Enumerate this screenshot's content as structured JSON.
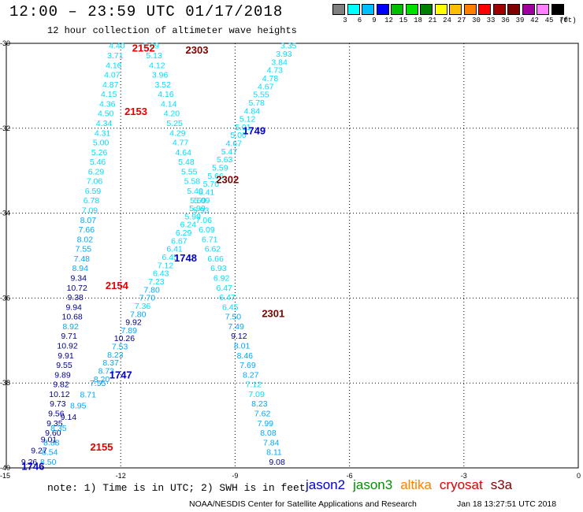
{
  "title": "12:00 – 23:59 UTC 01/17/2018",
  "subtitle": "12 hour collection of altimeter wave heights",
  "colorbar": {
    "colors": [
      "#808080",
      "#00ffff",
      "#00bfff",
      "#0000ff",
      "#00c000",
      "#00e000",
      "#008000",
      "#ffff00",
      "#ffbf00",
      "#ff8000",
      "#ff0000",
      "#a00000",
      "#800000",
      "#a000a0",
      "#ff80ff",
      "#000000"
    ],
    "labels": [
      "3",
      "6",
      "9",
      "12",
      "15",
      "18",
      "21",
      "24",
      "27",
      "30",
      "33",
      "36",
      "39",
      "42",
      "45",
      "70"
    ],
    "unit": "(ft)"
  },
  "axes": {
    "lat_ticks": [
      "-30",
      "-32",
      "-34",
      "-36",
      "-38",
      "-40"
    ],
    "lon_ticks": [
      "-15",
      "-12",
      "-9",
      "-6",
      "-3",
      "0"
    ],
    "lat_range": [
      -40,
      -30
    ],
    "lon_range": [
      -15,
      0
    ]
  },
  "colors": {
    "light": "#00e0ff",
    "mid": "#00a8ff",
    "dark": "#000090",
    "jason2": "#0000c8",
    "jason3": "#009000",
    "altika": "#ff8000",
    "cryosat": "#e00000",
    "s3a": "#800000"
  },
  "tracks": [
    {
      "id": "t1",
      "start": [
        -12.1,
        -30.05
      ],
      "end": [
        -13.9,
        -39.85
      ],
      "values": [
        "4.40",
        "3.71",
        "4.16",
        "4.07",
        "4.87",
        "4.15",
        "4.36",
        "4.50",
        "4.34",
        "4.31",
        "5.00",
        "5.26",
        "5.46",
        "6.29",
        "7.06",
        "6.59",
        "6.78",
        "7.09",
        "8.07",
        "7.66",
        "8.02",
        "7.55",
        "7.48",
        "8.94",
        "9.34",
        "10.72",
        "9.38",
        "9.94",
        "10.68",
        "8.92",
        "9.71",
        "10.92",
        "9.91",
        "9.55",
        "9.89",
        "9.82",
        "10.12",
        "9.73",
        "9.56",
        "9.35",
        "9.60",
        "8.88",
        "8.54",
        "8.50"
      ]
    },
    {
      "id": "t2",
      "start": [
        -11.2,
        -30.05
      ],
      "end": [
        -7.9,
        -39.85
      ],
      "values": [
        "5.09",
        "5.13",
        "4.12",
        "3.96",
        "3.52",
        "4.16",
        "4.14",
        "4.20",
        "5.25",
        "4.29",
        "4.77",
        "4.64",
        "5.48",
        "5.55",
        "5.58",
        "5.40",
        "5.59",
        "5.93",
        "7.06",
        "6.09",
        "6.71",
        "6.62",
        "6.66",
        "6.93",
        "6.92",
        "6.47",
        "6.47",
        "6.45",
        "7.50",
        "7.49",
        "9.12",
        "8.01",
        "8.46",
        "7.69",
        "8.27",
        "7.12",
        "7.09",
        "8.23",
        "7.62",
        "7.99",
        "8.08",
        "7.84",
        "8.11",
        "9.08"
      ]
    },
    {
      "id": "t3",
      "start": [
        -7.6,
        -30.05
      ],
      "end": [
        -12.5,
        -37.9
      ],
      "values": [
        "3.35",
        "3.93",
        "3.84",
        "4.73",
        "4.78",
        "4.67",
        "5.55",
        "5.78",
        "4.84",
        "5.12",
        "5.01",
        "5.00",
        "4.67",
        "5.47",
        "5.63",
        "5.59",
        "5.66",
        "5.70",
        "6.41",
        "5.09",
        "5.99",
        "5.99",
        "6.24",
        "6.29",
        "6.67",
        "6.41",
        "6.45",
        "7.12",
        "6.43",
        "7.23",
        "7.80",
        "7.70",
        "7.36",
        "7.80",
        "9.92",
        "7.89",
        "10.26",
        "7.53",
        "8.23",
        "8.37",
        "8.73",
        "8.20"
      ]
    },
    {
      "id": "t4",
      "start": [
        -12.6,
        -38.0
      ],
      "end": [
        -14.4,
        -39.85
      ],
      "values": [
        "7.55",
        "8.71",
        "8.95",
        "9.14",
        "8.35",
        "9.01",
        "9.27",
        "9.26"
      ]
    }
  ],
  "pass_labels": [
    {
      "text": "2152",
      "lon": -11.4,
      "lat": -30.1,
      "color": "cryosat"
    },
    {
      "text": "2303",
      "lon": -10.0,
      "lat": -30.15,
      "color": "s3a"
    },
    {
      "text": "2153",
      "lon": -11.6,
      "lat": -31.6,
      "color": "cryosat"
    },
    {
      "text": "1749",
      "lon": -8.5,
      "lat": -32.05,
      "color": "jason2"
    },
    {
      "text": "2302",
      "lon": -9.2,
      "lat": -33.2,
      "color": "s3a"
    },
    {
      "text": "1748",
      "lon": -10.3,
      "lat": -35.05,
      "color": "jason2"
    },
    {
      "text": "2154",
      "lon": -12.1,
      "lat": -35.7,
      "color": "cryosat"
    },
    {
      "text": "2301",
      "lon": -8.0,
      "lat": -36.35,
      "color": "s3a"
    },
    {
      "text": "1747",
      "lon": -12.0,
      "lat": -37.8,
      "color": "jason2"
    },
    {
      "text": "2155",
      "lon": -12.5,
      "lat": -39.5,
      "color": "cryosat"
    },
    {
      "text": "1746",
      "lon": -14.3,
      "lat": -39.95,
      "color": "jason2"
    }
  ],
  "note": "note: 1) Time is in UTC; 2) SWH is in feet",
  "legend": [
    {
      "label": "jason2",
      "color": "#0000c8"
    },
    {
      "label": "jason3",
      "color": "#009000"
    },
    {
      "label": "altika",
      "color": "#ff8000"
    },
    {
      "label": "cryosat",
      "color": "#e00000"
    },
    {
      "label": "s3a",
      "color": "#800000"
    }
  ],
  "credit": "NOAA/NESDIS Center for Satellite Applications and Research",
  "timestamp": "Jan 18 13:27:51 UTC 2018"
}
